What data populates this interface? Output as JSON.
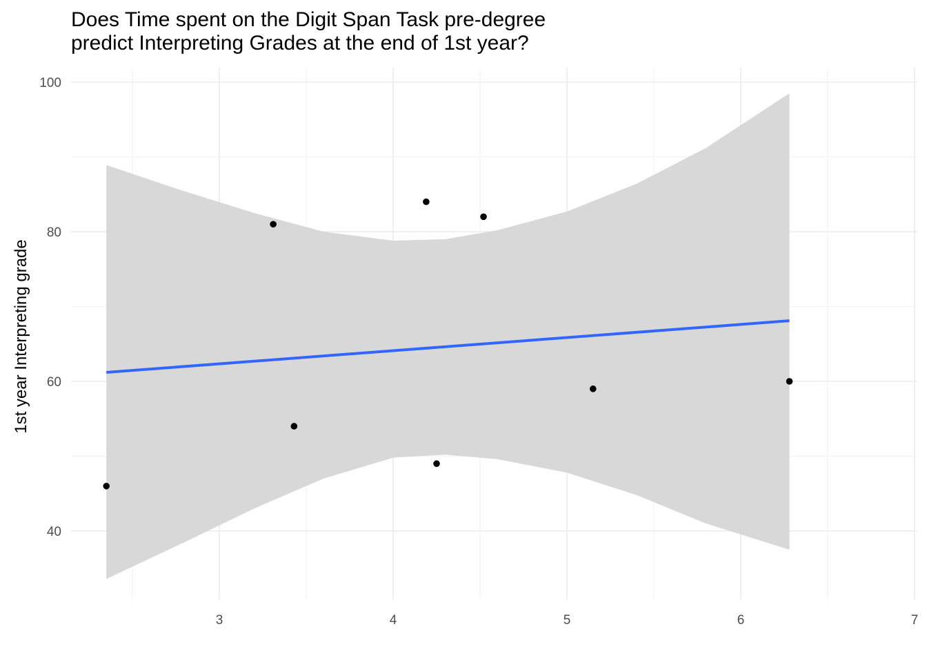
{
  "chart_data": {
    "type": "scatter",
    "title": "Does Time spent on the Digit Span Task pre-degree\npredict Interpreting Grades at the end of 1st year?",
    "xlabel": "",
    "ylabel": "1st year Interpreting grade",
    "xlim": [
      2.2,
      7.0
    ],
    "ylim": [
      30,
      102
    ],
    "x_ticks": [
      3,
      4,
      5,
      6,
      7
    ],
    "y_ticks": [
      40,
      60,
      80,
      100
    ],
    "grid": true,
    "points": [
      {
        "x": 2.35,
        "y": 46
      },
      {
        "x": 3.31,
        "y": 81
      },
      {
        "x": 3.43,
        "y": 54
      },
      {
        "x": 4.19,
        "y": 84
      },
      {
        "x": 4.25,
        "y": 49
      },
      {
        "x": 4.52,
        "y": 82
      },
      {
        "x": 5.15,
        "y": 59
      },
      {
        "x": 6.28,
        "y": 60
      }
    ],
    "trend_line": {
      "x": [
        2.35,
        6.28
      ],
      "y": [
        61.2,
        68.1
      ],
      "color": "#3366FF"
    },
    "confidence_band": {
      "color": "#d6d6d6",
      "x": [
        2.35,
        2.8,
        3.2,
        3.6,
        4.0,
        4.3,
        4.6,
        5.0,
        5.4,
        5.8,
        6.28
      ],
      "upper": [
        88.9,
        85.4,
        82.5,
        80.0,
        78.8,
        79.0,
        80.2,
        82.7,
        86.4,
        91.2,
        98.5
      ],
      "lower": [
        33.6,
        38.5,
        43.0,
        47.0,
        49.8,
        50.2,
        49.6,
        47.8,
        44.8,
        41.0,
        37.5
      ]
    },
    "colors": {
      "point": "#000000",
      "grid_major": "#ebebeb",
      "grid_minor": "#f4f4f4"
    }
  }
}
